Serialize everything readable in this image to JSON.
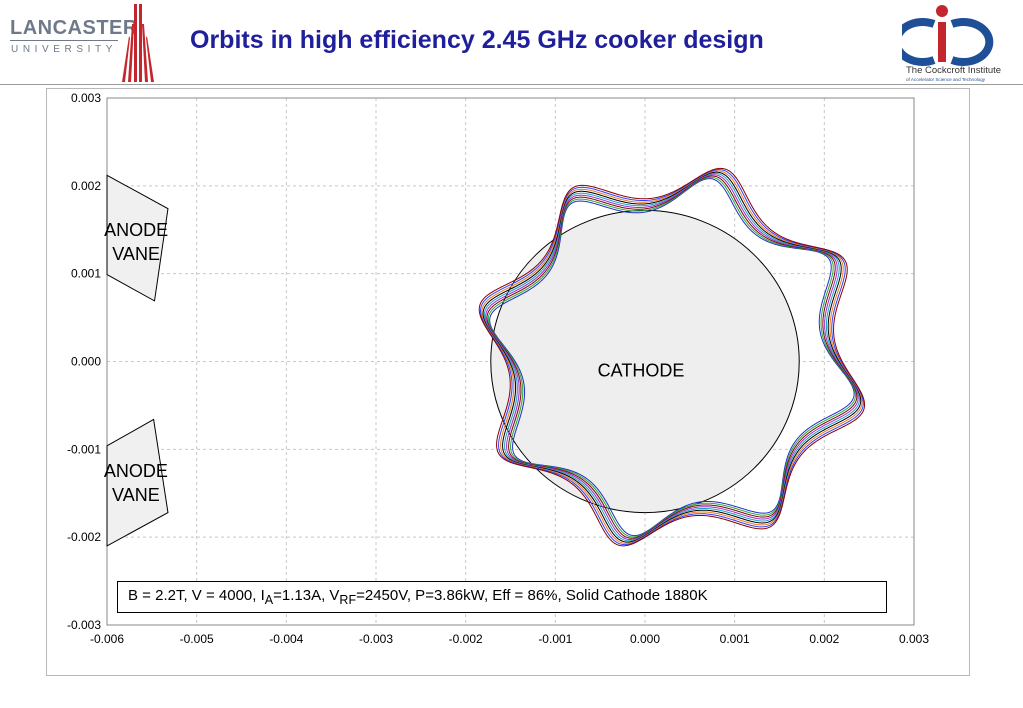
{
  "header": {
    "title": "Orbits in high efficiency 2.45 GHz cooker design",
    "logo_left": {
      "name": "lancaster-university-logo",
      "line1": "LANCASTER",
      "line2": "UNIVERSITY",
      "color": "#6e7a8a",
      "accent": "#c4262e"
    },
    "logo_right": {
      "name": "cockcroft-institute-logo",
      "line1": "The Cockcroft Institute",
      "line2": "of Accelerator Science and Technology",
      "blue": "#1f4f96",
      "red": "#c4262e"
    }
  },
  "colors": {
    "title": "#1f1f9c",
    "grid": "#c8c8c8",
    "vane_fill": "#f0f0f0",
    "cathode_fill": "#eeeeee",
    "orbit_palette": [
      "#1f2fc9",
      "#2aa83a",
      "#7a0a0a",
      "#9b2fc9",
      "#1e9ec9",
      "#000000",
      "#f07a1a",
      "#3040ff",
      "#8b0000"
    ]
  },
  "chart_data": {
    "type": "line",
    "title": "",
    "xlabel": "",
    "ylabel": "",
    "xlim": [
      -0.006,
      0.003
    ],
    "ylim": [
      -0.003,
      0.003
    ],
    "xticks": [
      "-0.006",
      "-0.005",
      "-0.004",
      "-0.003",
      "-0.002",
      "-0.001",
      "0.000",
      "0.001",
      "0.002",
      "0.003"
    ],
    "yticks": [
      "0.003",
      "0.002",
      "0.001",
      "0.000",
      "-0.001",
      "-0.002",
      "-0.003"
    ],
    "grid": "dashed",
    "legend": false,
    "annotations": {
      "parameters_html": "B = 2.2T, V = 4000, I<sub>A</sub>=1.13A, V<sub>RF</sub>=2450V, P=3.86kW, Eff = 86%, Solid Cathode 1880K",
      "cathode_label": "CATHODE",
      "anode_top_label": [
        "ANODE",
        "VANE"
      ],
      "anode_bottom_label": [
        "ANODE",
        "VANE"
      ]
    },
    "cathode": {
      "center": [
        0.0,
        0.0
      ],
      "radius": 0.00172
    },
    "anode_vanes": [
      {
        "polygon": [
          [
            -0.006,
            0.00212
          ],
          [
            -0.00532,
            0.00174
          ],
          [
            -0.00547,
            0.00069
          ],
          [
            -0.006,
            0.00099
          ]
        ]
      },
      {
        "polygon": [
          [
            -0.006,
            -0.00096
          ],
          [
            -0.00548,
            -0.00066
          ],
          [
            -0.00532,
            -0.00172
          ],
          [
            -0.006,
            -0.0021
          ]
        ]
      }
    ],
    "orbit_trajectories": {
      "count": 9,
      "center": [
        0.0003,
        5e-05
      ],
      "outer_radius": 0.00215,
      "inner_radius": 0.00175,
      "loops": 8,
      "start_angle_deg": -170,
      "end_angle_deg": 200
    }
  }
}
